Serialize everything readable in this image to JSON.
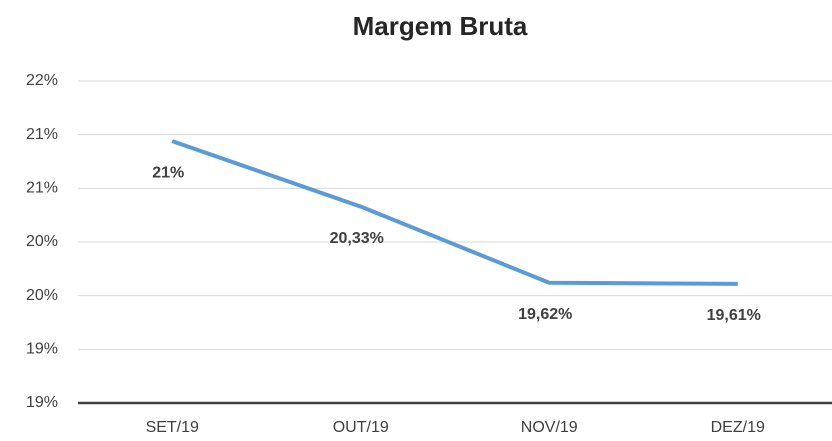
{
  "chart_data": {
    "type": "line",
    "title": "Margem Bruta",
    "categories": [
      "SET/19",
      "OUT/19",
      "NOV/19",
      "DEZ/19"
    ],
    "series": [
      {
        "name": "Margem Bruta",
        "color": "#5b9bd5",
        "values": [
          20.94,
          20.33,
          19.62,
          19.61
        ],
        "value_labels": [
          "21%",
          "20,33%",
          "19,62%",
          "19,61%"
        ]
      }
    ],
    "ylim": [
      18.5,
      21.5
    ],
    "yticks": [
      {
        "value": 18.5,
        "label": "19%"
      },
      {
        "value": 19,
        "label": "19%"
      },
      {
        "value": 19.5,
        "label": "20%"
      },
      {
        "value": 20,
        "label": "20%"
      },
      {
        "value": 20.5,
        "label": "21%"
      },
      {
        "value": 21,
        "label": "21%"
      },
      {
        "value": 21.5,
        "label": "22%"
      }
    ],
    "grid": true
  }
}
